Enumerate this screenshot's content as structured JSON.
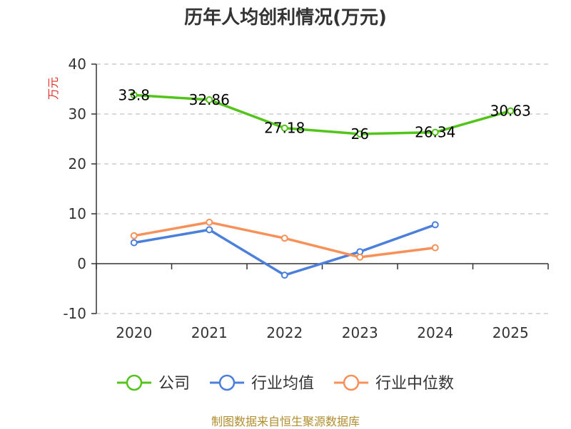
{
  "chart_data": {
    "type": "line",
    "title": "历年人均创利情况(万元)",
    "ylabel": "万元",
    "xlabel": "",
    "categories": [
      "2020",
      "2021",
      "2022",
      "2023",
      "2024",
      "2025"
    ],
    "ylim": [
      -10,
      40
    ],
    "yticks": [
      40,
      30,
      20,
      10,
      0,
      -10
    ],
    "grid": true,
    "legend_position": "bottom",
    "series": [
      {
        "name": "公司",
        "color": "#52c41a",
        "values": [
          33.8,
          32.86,
          27.18,
          26,
          26.34,
          30.63
        ],
        "labels": [
          "33.8",
          "32.86",
          "27.18",
          "26",
          "26.34",
          "30.63"
        ]
      },
      {
        "name": "行业均值",
        "color": "#4a7fdc",
        "values": [
          4.2,
          6.8,
          -2.3,
          2.4,
          7.8,
          null
        ]
      },
      {
        "name": "行业中位数",
        "color": "#f79059",
        "values": [
          5.6,
          8.3,
          5.1,
          1.3,
          3.2,
          null
        ]
      }
    ]
  },
  "source_note": "制图数据来自恒生聚源数据库"
}
